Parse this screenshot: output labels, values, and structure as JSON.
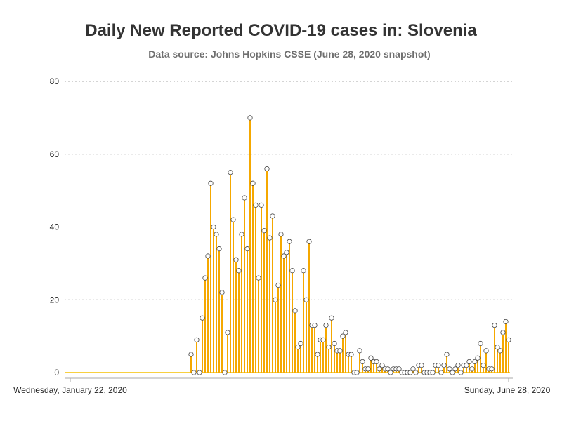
{
  "title": "Daily New Reported COVID-19 cases in: Slovenia",
  "subtitle": "Data source: Johns Hopkins CSSE (June 28, 2020 snapshot)",
  "colors": {
    "bar": "#f5a800",
    "baseline": "#f5c000",
    "marker_fill": "#ffffff",
    "marker_stroke": "#444444",
    "grid": "#aaaaaa",
    "axis": "#aaaaaa"
  },
  "chart_data": {
    "type": "bar",
    "title": "Daily New Reported COVID-19 cases in: Slovenia",
    "subtitle": "Data source: Johns Hopkins CSSE (June 28, 2020 snapshot)",
    "x_start": "2020-01-22",
    "x_end": "2020-06-28",
    "x_tick_labels": [
      "Wednesday, January 22, 2020",
      "Sunday, June 28, 2020"
    ],
    "ylim": [
      0,
      80
    ],
    "y_ticks": [
      0,
      20,
      40,
      60,
      80
    ],
    "grid": true,
    "markers": "circle",
    "values": [
      0,
      0,
      0,
      0,
      0,
      0,
      0,
      0,
      0,
      0,
      0,
      0,
      0,
      0,
      0,
      0,
      0,
      0,
      0,
      0,
      0,
      0,
      0,
      0,
      0,
      0,
      0,
      0,
      0,
      0,
      0,
      0,
      0,
      0,
      0,
      0,
      0,
      0,
      0,
      0,
      0,
      0,
      0,
      5,
      0,
      9,
      0,
      15,
      26,
      32,
      52,
      40,
      38,
      34,
      22,
      0,
      11,
      55,
      42,
      31,
      28,
      38,
      48,
      34,
      70,
      52,
      46,
      26,
      46,
      39,
      56,
      37,
      43,
      20,
      24,
      38,
      32,
      33,
      36,
      28,
      17,
      7,
      8,
      28,
      20,
      36,
      13,
      13,
      5,
      9,
      9,
      13,
      7,
      15,
      8,
      6,
      6,
      10,
      11,
      5,
      5,
      0,
      0,
      6,
      3,
      1,
      1,
      4,
      3,
      3,
      1,
      2,
      1,
      1,
      0,
      1,
      1,
      1,
      0,
      0,
      0,
      0,
      1,
      0,
      2,
      2,
      0,
      0,
      0,
      0,
      2,
      2,
      0,
      2,
      5,
      1,
      0,
      1,
      2,
      0,
      2,
      2,
      3,
      1,
      3,
      4,
      8,
      2,
      6,
      1,
      1,
      13,
      7,
      6,
      11,
      14,
      9
    ]
  }
}
